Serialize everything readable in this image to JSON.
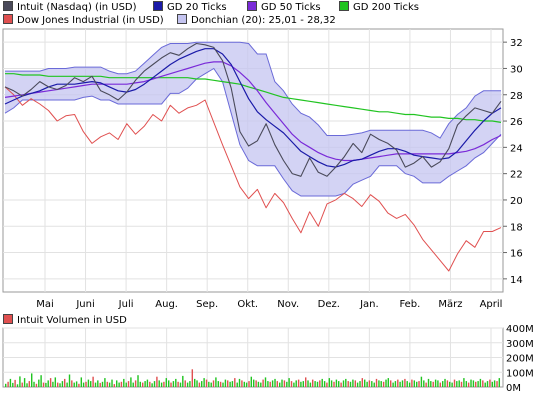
{
  "legend": {
    "intuit": "Intuit (Nasdaq) (in USD)",
    "gd20": "GD 20 Ticks",
    "gd50": "GD 50 Ticks",
    "gd200": "GD 200 Ticks",
    "dow": "Dow Jones Industrial (in USD)",
    "donchian": "Donchian (20): 25,01 - 28,32",
    "volume": "Intuit Volumen in USD"
  },
  "colors": {
    "intuit": "#4a4a5a",
    "gd20": "#1a1aa8",
    "gd50": "#7a2ad8",
    "gd200": "#21c421",
    "dow": "#e05050",
    "donchian_fill": "#c4c4f0",
    "donchian_line": "#6a6ad8",
    "vol_red": "#e05050",
    "vol_green": "#21c421"
  },
  "chart_data": [
    {
      "type": "line",
      "title": "",
      "x_ticks": [
        "Mai",
        "Juni",
        "Juli",
        "Aug.",
        "Sep.",
        "Okt.",
        "Nov.",
        "Dez.",
        "Jan.",
        "Feb.",
        "März",
        "April"
      ],
      "y_ticks": [
        14,
        16,
        18,
        20,
        22,
        24,
        26,
        28,
        30,
        32
      ],
      "ylim": [
        13,
        33
      ],
      "grid": true,
      "series": [
        {
          "name": "Intuit (Nasdaq) (in USD)",
          "key": "intuit",
          "values": [
            28.6,
            28.3,
            27.9,
            28.4,
            29.0,
            28.6,
            28.4,
            28.7,
            29.3,
            29.0,
            29.4,
            28.3,
            28.0,
            27.6,
            28.2,
            29.1,
            29.8,
            30.3,
            30.8,
            31.2,
            31.0,
            31.5,
            31.9,
            31.8,
            31.6,
            30.6,
            28.5,
            25.2,
            24.1,
            24.5,
            25.8,
            24.2,
            23.0,
            22.0,
            21.8,
            23.2,
            22.1,
            21.8,
            22.5,
            23.3,
            24.3,
            23.6,
            25.0,
            24.6,
            24.3,
            23.8,
            22.5,
            22.8,
            23.3,
            22.5,
            22.9,
            23.9,
            25.7,
            26.4,
            27.0,
            26.8,
            26.6,
            27.5
          ]
        },
        {
          "name": "GD 20 Ticks",
          "key": "gd20",
          "values": [
            27.3,
            27.6,
            27.9,
            28.1,
            28.3,
            28.6,
            28.8,
            28.8,
            28.8,
            28.9,
            29.0,
            28.9,
            28.6,
            28.3,
            28.2,
            28.4,
            28.8,
            29.3,
            29.8,
            30.3,
            30.7,
            31.0,
            31.3,
            31.5,
            31.5,
            31.1,
            30.3,
            29.0,
            27.7,
            26.7,
            26.1,
            25.6,
            25.1,
            24.4,
            23.7,
            23.3,
            22.9,
            22.6,
            22.5,
            22.7,
            23.0,
            23.1,
            23.4,
            23.7,
            23.9,
            23.9,
            23.7,
            23.4,
            23.3,
            23.2,
            23.1,
            23.2,
            23.7,
            24.5,
            25.3,
            26.0,
            26.6,
            27.0
          ]
        },
        {
          "name": "GD 50 Ticks",
          "key": "gd50",
          "values": [
            27.8,
            27.9,
            28.0,
            28.1,
            28.2,
            28.3,
            28.4,
            28.5,
            28.6,
            28.7,
            28.8,
            28.8,
            28.8,
            28.8,
            28.8,
            28.9,
            29.0,
            29.2,
            29.4,
            29.6,
            29.8,
            30.0,
            30.2,
            30.4,
            30.5,
            30.5,
            30.2,
            29.7,
            29.1,
            28.3,
            27.4,
            26.6,
            25.8,
            25.0,
            24.4,
            24.0,
            23.6,
            23.3,
            23.1,
            23.0,
            23.0,
            23.1,
            23.2,
            23.3,
            23.4,
            23.5,
            23.5,
            23.5,
            23.5,
            23.5,
            23.5,
            23.5,
            23.6,
            23.7,
            23.9,
            24.2,
            24.6,
            24.9
          ]
        },
        {
          "name": "GD 200 Ticks",
          "key": "gd200",
          "values": [
            29.6,
            29.6,
            29.5,
            29.5,
            29.5,
            29.4,
            29.4,
            29.4,
            29.4,
            29.4,
            29.4,
            29.4,
            29.3,
            29.3,
            29.3,
            29.3,
            29.3,
            29.3,
            29.3,
            29.3,
            29.3,
            29.3,
            29.2,
            29.2,
            29.1,
            29.0,
            28.9,
            28.8,
            28.6,
            28.4,
            28.2,
            28.0,
            27.8,
            27.7,
            27.6,
            27.5,
            27.4,
            27.3,
            27.2,
            27.1,
            27.0,
            26.9,
            26.8,
            26.7,
            26.7,
            26.6,
            26.5,
            26.5,
            26.4,
            26.3,
            26.3,
            26.2,
            26.2,
            26.1,
            26.1,
            26.0,
            26.0,
            25.9
          ]
        },
        {
          "name": "Dow Jones Industrial (in USD)",
          "key": "dow",
          "values": [
            28.6,
            28.0,
            27.2,
            27.7,
            27.3,
            26.8,
            26.0,
            26.4,
            26.5,
            25.2,
            24.3,
            24.8,
            25.1,
            24.6,
            25.8,
            25.0,
            25.6,
            26.5,
            26.0,
            27.2,
            26.6,
            27.0,
            27.2,
            27.6,
            25.9,
            24.2,
            22.6,
            21.0,
            20.1,
            20.8,
            19.4,
            20.5,
            19.8,
            18.6,
            17.5,
            19.1,
            18.0,
            19.7,
            20.0,
            20.5,
            20.1,
            19.5,
            20.4,
            19.9,
            19.0,
            18.6,
            18.9,
            18.1,
            17.0,
            16.2,
            15.4,
            14.6,
            15.9,
            16.9,
            16.4,
            17.6,
            17.6,
            17.9
          ]
        }
      ],
      "bands": [
        {
          "name": "Donchian (20): 25,01 - 28,32",
          "key": "donchian",
          "upper": [
            29.8,
            29.8,
            29.8,
            29.8,
            29.8,
            30.0,
            30.0,
            30.0,
            30.1,
            30.1,
            30.1,
            30.1,
            29.8,
            29.6,
            29.6,
            29.8,
            30.4,
            31.0,
            31.6,
            31.9,
            31.9,
            31.9,
            32.0,
            32.0,
            32.0,
            32.0,
            32.0,
            32.0,
            31.9,
            31.1,
            31.1,
            29.0,
            28.3,
            27.3,
            26.6,
            26.3,
            25.7,
            24.9,
            24.9,
            24.9,
            25.0,
            25.1,
            25.3,
            25.3,
            25.3,
            25.3,
            25.3,
            25.3,
            25.3,
            25.1,
            24.7,
            25.8,
            26.5,
            27.0,
            27.9,
            28.3,
            28.3,
            28.3
          ],
          "lower": [
            26.6,
            27.0,
            27.6,
            27.6,
            27.6,
            27.6,
            27.6,
            27.6,
            27.6,
            27.8,
            27.9,
            27.6,
            27.6,
            27.3,
            27.3,
            27.3,
            27.3,
            27.3,
            27.3,
            28.1,
            28.1,
            28.5,
            29.2,
            29.6,
            30.0,
            29.0,
            26.6,
            24.2,
            23.0,
            22.6,
            22.6,
            22.6,
            21.6,
            20.7,
            20.3,
            20.3,
            20.3,
            20.3,
            20.3,
            20.5,
            21.2,
            21.5,
            21.8,
            22.6,
            22.6,
            22.6,
            22.0,
            21.8,
            21.3,
            21.3,
            21.3,
            21.8,
            22.2,
            22.6,
            23.2,
            23.6,
            24.3,
            25.0
          ]
        }
      ]
    },
    {
      "type": "bar",
      "title": "Intuit Volumen in USD",
      "y_ticks": [
        "0M",
        "100M",
        "200M",
        "300M",
        "400M"
      ],
      "ylim": [
        0,
        400
      ],
      "values": [
        22,
        35,
        55,
        28,
        48,
        18,
        72,
        30,
        60,
        25,
        40,
        92,
        35,
        22,
        50,
        80,
        30,
        28,
        45,
        60,
        35,
        65,
        30,
        25,
        40,
        55,
        30,
        85,
        45,
        30,
        38,
        22,
        65,
        30,
        35,
        50,
        40,
        70,
        30,
        45,
        28,
        35,
        60,
        35,
        30,
        50,
        20,
        45,
        30,
        35,
        55,
        30,
        40,
        65,
        30,
        45,
        80,
        35,
        30,
        40,
        50,
        35,
        25,
        40,
        70,
        45,
        30,
        35,
        60,
        45,
        30,
        40,
        55,
        35,
        30,
        75,
        45,
        30,
        40,
        120,
        55,
        45,
        30,
        40,
        60,
        50,
        35,
        30,
        45,
        65,
        40,
        35,
        30,
        50,
        45,
        35,
        40,
        60,
        30,
        55,
        45,
        35,
        30,
        40,
        70,
        50,
        45,
        35,
        30,
        50,
        65,
        40,
        35,
        45,
        55,
        40,
        30,
        50,
        45,
        35,
        60,
        40,
        30,
        45,
        50,
        35,
        40,
        65,
        45,
        30,
        50,
        40,
        35,
        45,
        55,
        40,
        30,
        60,
        45,
        35,
        50,
        40,
        30,
        45,
        55,
        40,
        35,
        50,
        45,
        30,
        40,
        60,
        50,
        35,
        45,
        40,
        30,
        55,
        45,
        40,
        35,
        50,
        60,
        45,
        30,
        40,
        50,
        35,
        45,
        55,
        40,
        30,
        50,
        45,
        35,
        40,
        70,
        45,
        30,
        55,
        40,
        35,
        50,
        45,
        30,
        40,
        55,
        45,
        35,
        30,
        50,
        40,
        45,
        35,
        60,
        40,
        30,
        50,
        45,
        35,
        40,
        55,
        45,
        30,
        40,
        50,
        35,
        45,
        40,
        60
      ]
    }
  ]
}
